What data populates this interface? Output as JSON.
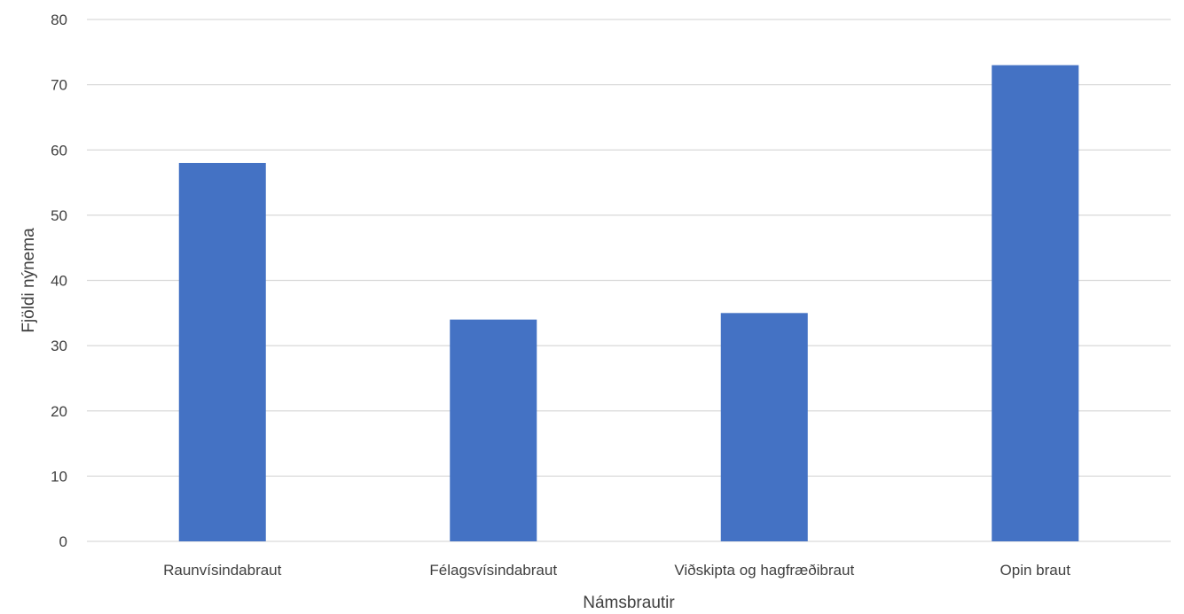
{
  "chart_data": {
    "type": "bar",
    "title": "",
    "xlabel": "Námsbrautir",
    "ylabel": "Fjöldi nýnema",
    "categories": [
      "Raunvísindabraut",
      "Félagsvísindabraut",
      "Viðskipta og hagfræðibraut",
      "Opin braut"
    ],
    "values": [
      58,
      34,
      35,
      73
    ],
    "ylim": [
      0,
      80
    ],
    "yticks": [
      0,
      10,
      20,
      30,
      40,
      50,
      60,
      70,
      80
    ],
    "grid": true,
    "legend": "none",
    "bar_color": "#4472c4",
    "grid_color": "#d9d9d9",
    "text_color": "#404040"
  }
}
